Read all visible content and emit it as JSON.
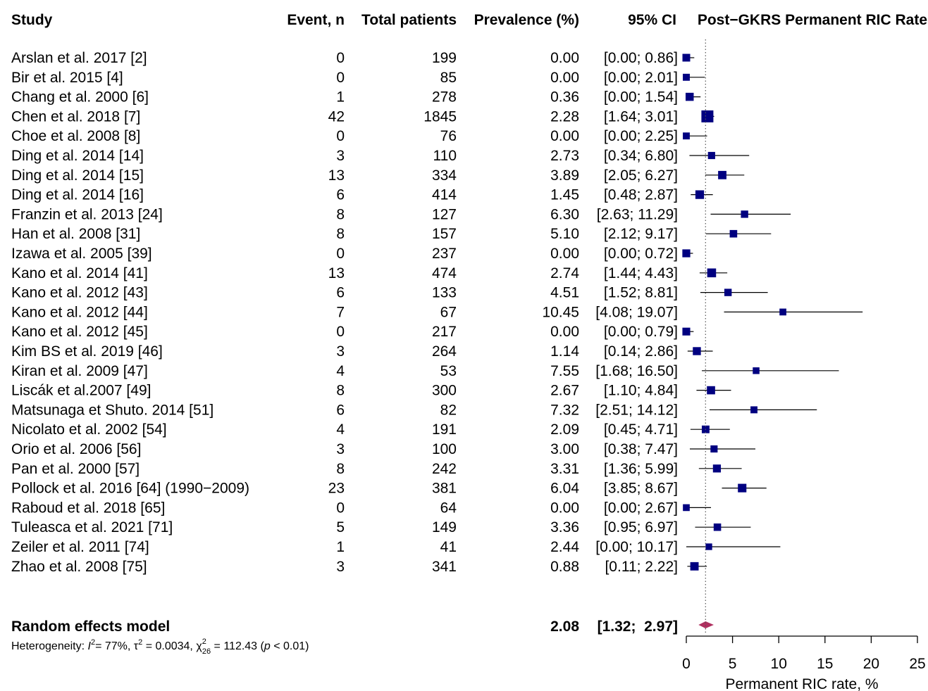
{
  "chart_data": {
    "type": "forest",
    "headers": {
      "study": "Study",
      "events": "Event, n",
      "total": "Total patients",
      "prevalence": "Prevalence (%)",
      "ci": "95% CI",
      "plot_title": "Post−GKRS Permanent RIC Rate"
    },
    "studies": [
      {
        "study": "Arslan et al. 2017 [2]",
        "events": "0",
        "total": "199",
        "est_label": "0.00",
        "ci_label": "[0.00;  0.86]",
        "est": 0.0,
        "lo": 0.0,
        "hi": 0.86
      },
      {
        "study": "Bir et al. 2015 [4]",
        "events": "0",
        "total": "85",
        "est_label": "0.00",
        "ci_label": "[0.00;  2.01]",
        "est": 0.0,
        "lo": 0.0,
        "hi": 2.01
      },
      {
        "study": "Chang et al. 2000 [6]",
        "events": "1",
        "total": "278",
        "est_label": "0.36",
        "ci_label": "[0.00;  1.54]",
        "est": 0.36,
        "lo": 0.0,
        "hi": 1.54
      },
      {
        "study": "Chen et al. 2018 [7]",
        "events": "42",
        "total": "1845",
        "est_label": "2.28",
        "ci_label": "[1.64;  3.01]",
        "est": 2.28,
        "lo": 1.64,
        "hi": 3.01
      },
      {
        "study": "Choe et al. 2008 [8]",
        "events": "0",
        "total": "76",
        "est_label": "0.00",
        "ci_label": "[0.00;  2.25]",
        "est": 0.0,
        "lo": 0.0,
        "hi": 2.25
      },
      {
        "study": "Ding et al. 2014 [14]",
        "events": "3",
        "total": "110",
        "est_label": "2.73",
        "ci_label": "[0.34;  6.80]",
        "est": 2.73,
        "lo": 0.34,
        "hi": 6.8
      },
      {
        "study": "Ding et al. 2014 [15]",
        "events": "13",
        "total": "334",
        "est_label": "3.89",
        "ci_label": "[2.05;  6.27]",
        "est": 3.89,
        "lo": 2.05,
        "hi": 6.27
      },
      {
        "study": "Ding et al. 2014 [16]",
        "events": "6",
        "total": "414",
        "est_label": "1.45",
        "ci_label": "[0.48;  2.87]",
        "est": 1.45,
        "lo": 0.48,
        "hi": 2.87
      },
      {
        "study": "Franzin et al. 2013 [24]",
        "events": "8",
        "total": "127",
        "est_label": "6.30",
        "ci_label": "[2.63; 11.29]",
        "est": 6.3,
        "lo": 2.63,
        "hi": 11.29
      },
      {
        "study": "Han et al. 2008 [31]",
        "events": "8",
        "total": "157",
        "est_label": "5.10",
        "ci_label": "[2.12;  9.17]",
        "est": 5.1,
        "lo": 2.12,
        "hi": 9.17
      },
      {
        "study": "Izawa et al. 2005 [39]",
        "events": "0",
        "total": "237",
        "est_label": "0.00",
        "ci_label": "[0.00;  0.72]",
        "est": 0.0,
        "lo": 0.0,
        "hi": 0.72
      },
      {
        "study": "Kano et al. 2014 [41]",
        "events": "13",
        "total": "474",
        "est_label": "2.74",
        "ci_label": "[1.44;  4.43]",
        "est": 2.74,
        "lo": 1.44,
        "hi": 4.43
      },
      {
        "study": "Kano et al. 2012 [43]",
        "events": "6",
        "total": "133",
        "est_label": "4.51",
        "ci_label": "[1.52;  8.81]",
        "est": 4.51,
        "lo": 1.52,
        "hi": 8.81
      },
      {
        "study": "Kano et al. 2012 [44]",
        "events": "7",
        "total": "67",
        "est_label": "10.45",
        "ci_label": "[4.08; 19.07]",
        "est": 10.45,
        "lo": 4.08,
        "hi": 19.07
      },
      {
        "study": "Kano et al. 2012 [45]",
        "events": "0",
        "total": "217",
        "est_label": "0.00",
        "ci_label": "[0.00;  0.79]",
        "est": 0.0,
        "lo": 0.0,
        "hi": 0.79
      },
      {
        "study": "Kim BS et al. 2019 [46]",
        "events": "3",
        "total": "264",
        "est_label": "1.14",
        "ci_label": "[0.14;  2.86]",
        "est": 1.14,
        "lo": 0.14,
        "hi": 2.86
      },
      {
        "study": "Kiran et al. 2009 [47]",
        "events": "4",
        "total": "53",
        "est_label": "7.55",
        "ci_label": "[1.68; 16.50]",
        "est": 7.55,
        "lo": 1.68,
        "hi": 16.5
      },
      {
        "study": "Liscák et al.2007 [49]",
        "events": "8",
        "total": "300",
        "est_label": "2.67",
        "ci_label": "[1.10;  4.84]",
        "est": 2.67,
        "lo": 1.1,
        "hi": 4.84
      },
      {
        "study": "Matsunaga et Shuto. 2014 [51]",
        "events": "6",
        "total": "82",
        "est_label": "7.32",
        "ci_label": "[2.51; 14.12]",
        "est": 7.32,
        "lo": 2.51,
        "hi": 14.12
      },
      {
        "study": "Nicolato et al. 2002 [54]",
        "events": "4",
        "total": "191",
        "est_label": "2.09",
        "ci_label": "[0.45;  4.71]",
        "est": 2.09,
        "lo": 0.45,
        "hi": 4.71
      },
      {
        "study": "Orio et al. 2006 [56]",
        "events": "3",
        "total": "100",
        "est_label": "3.00",
        "ci_label": "[0.38;  7.47]",
        "est": 3.0,
        "lo": 0.38,
        "hi": 7.47
      },
      {
        "study": "Pan et al. 2000 [57]",
        "events": "8",
        "total": "242",
        "est_label": "3.31",
        "ci_label": "[1.36;  5.99]",
        "est": 3.31,
        "lo": 1.36,
        "hi": 5.99
      },
      {
        "study": "Pollock et al. 2016 [64] (1990−2009)",
        "events": "23",
        "total": "381",
        "est_label": "6.04",
        "ci_label": "[3.85;  8.67]",
        "est": 6.04,
        "lo": 3.85,
        "hi": 8.67
      },
      {
        "study": "Raboud et al. 2018 [65]",
        "events": "0",
        "total": "64",
        "est_label": "0.00",
        "ci_label": "[0.00;  2.67]",
        "est": 0.0,
        "lo": 0.0,
        "hi": 2.67
      },
      {
        "study": "Tuleasca et al. 2021 [71]",
        "events": "5",
        "total": "149",
        "est_label": "3.36",
        "ci_label": "[0.95;  6.97]",
        "est": 3.36,
        "lo": 0.95,
        "hi": 6.97
      },
      {
        "study": "Zeiler et al. 2011 [74]",
        "events": "1",
        "total": "41",
        "est_label": "2.44",
        "ci_label": "[0.00; 10.17]",
        "est": 2.44,
        "lo": 0.0,
        "hi": 10.17
      },
      {
        "study": "Zhao et al. 2008 [75]",
        "events": "3",
        "total": "341",
        "est_label": "0.88",
        "ci_label": "[0.11;  2.22]",
        "est": 0.88,
        "lo": 0.11,
        "hi": 2.22
      }
    ],
    "summary": {
      "label": "Random effects model",
      "est_label": "2.08",
      "ci_label": "[1.32;  2.97]",
      "est": 2.08,
      "lo": 1.32,
      "hi": 2.97,
      "heterogeneity_prefix": "Heterogeneity: ",
      "i2": "= 77%, ",
      "tau2": " = 0.0034, ",
      "chi2": " = 112.43 (",
      "p": " < 0.01)"
    },
    "axis": {
      "xlabel": "Permanent RIC rate, %",
      "xlim": [
        0,
        25
      ],
      "ticks": [
        0,
        5,
        10,
        15,
        20,
        25
      ]
    },
    "colors": {
      "square": "#000080",
      "diamond": "#b03060",
      "line": "#000000"
    }
  }
}
